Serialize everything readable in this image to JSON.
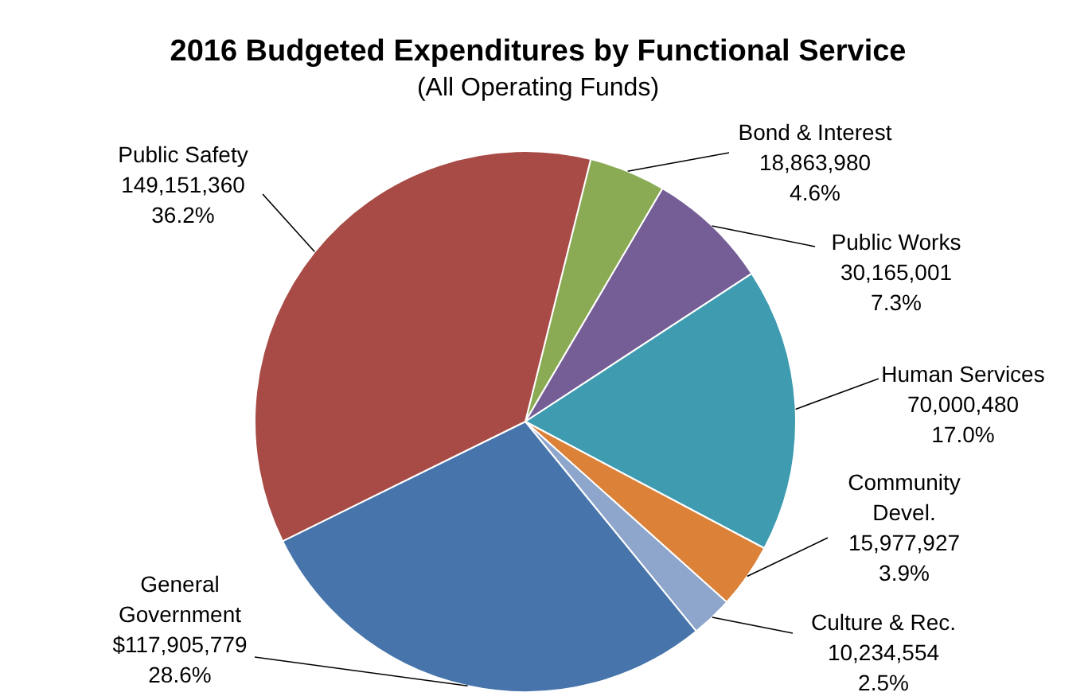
{
  "chart_data": {
    "type": "pie",
    "title": "2016 Budgeted Expenditures by Functional Service",
    "subtitle": "(All Operating Funds)",
    "categories": [
      "Bond & Interest",
      "Public Works",
      "Human Services",
      "Community Devel.",
      "Culture & Rec.",
      "General Government",
      "Public Safety"
    ],
    "values": [
      18863980,
      30165001,
      70000480,
      15977927,
      10234554,
      117905779,
      149151360
    ],
    "value_labels": [
      "18,863,980\n4.6%",
      "30,165,001\n7.3%",
      "70,000,480\n17.0%",
      "15,977,927\n3.9%",
      "10,234,554\n2.5%",
      "$117,905,779\n28.6%",
      "149,151,360\n36.2%"
    ],
    "colors": [
      "#8aab54",
      "#755e95",
      "#3f9bb0",
      "#db8138",
      "#8ea5cc",
      "#4775ab",
      "#a84b46"
    ]
  }
}
